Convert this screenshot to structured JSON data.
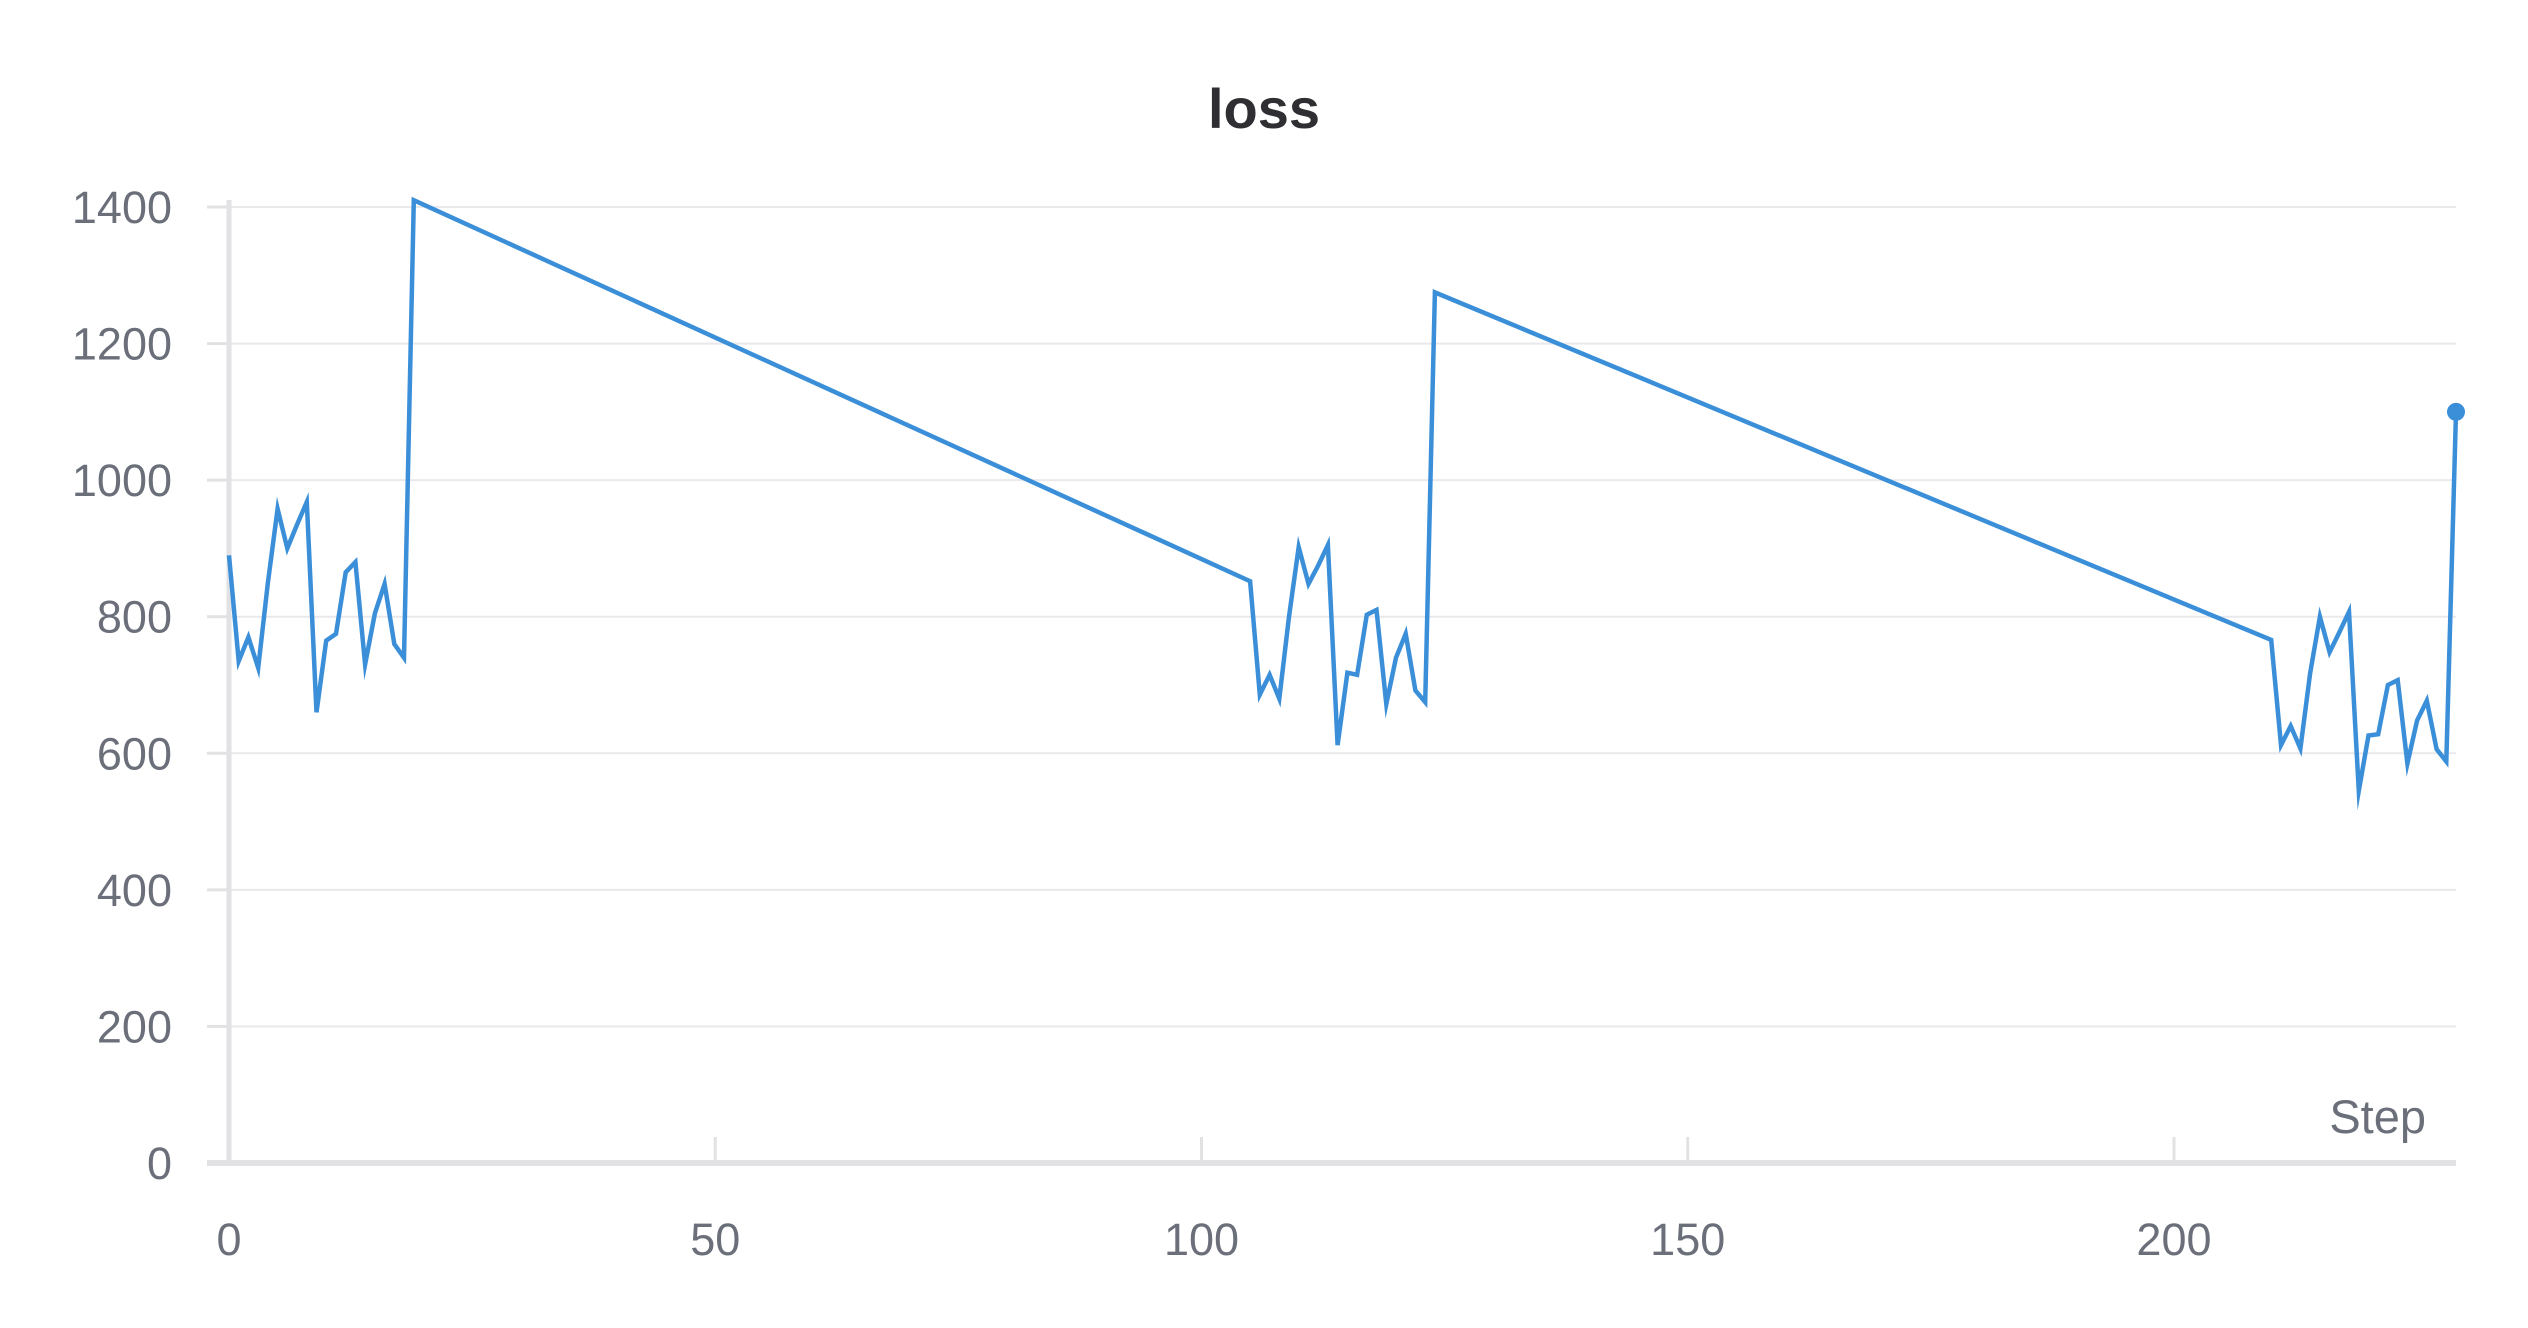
{
  "chart_data": {
    "type": "line",
    "title": "loss",
    "xlabel": "Step",
    "ylabel": "",
    "xlim": [
      0,
      229
    ],
    "ylim": [
      0,
      1400
    ],
    "xticks": [
      0,
      50,
      100,
      150,
      200
    ],
    "yticks": [
      0,
      200,
      400,
      600,
      800,
      1000,
      1200,
      1400
    ],
    "grid": true,
    "legend": "none",
    "colors": {
      "line": "#3b8fd8",
      "grid": "#e9e9ec",
      "axis": "#e2e2e5",
      "tick_text": "#6b6f7a",
      "title_text": "#2f2f33"
    },
    "series": [
      {
        "x": [
          0,
          1,
          2,
          3,
          4,
          5,
          6,
          7,
          8,
          9,
          10,
          11,
          12,
          13,
          14,
          15,
          16,
          17,
          18,
          19,
          105,
          106,
          107,
          108,
          109,
          110,
          111,
          112,
          113,
          114,
          115,
          116,
          117,
          118,
          119,
          120,
          121,
          122,
          123,
          124,
          210,
          211,
          212,
          213,
          214,
          215,
          216,
          217,
          218,
          219,
          220,
          221,
          222,
          223,
          224,
          225,
          226,
          227,
          228,
          229
        ],
        "y": [
          890,
          735,
          770,
          725,
          850,
          958,
          900,
          935,
          968,
          660,
          765,
          775,
          865,
          880,
          730,
          805,
          848,
          760,
          740,
          1410,
          852,
          686,
          715,
          680,
          800,
          902,
          848,
          875,
          905,
          612,
          718,
          715,
          803,
          810,
          672,
          740,
          775,
          692,
          675,
          1275,
          766,
          612,
          640,
          607,
          717,
          800,
          748,
          777,
          807,
          545,
          626,
          628,
          700,
          707,
          585,
          648,
          677,
          606,
          588,
          1100
        ]
      }
    ]
  }
}
